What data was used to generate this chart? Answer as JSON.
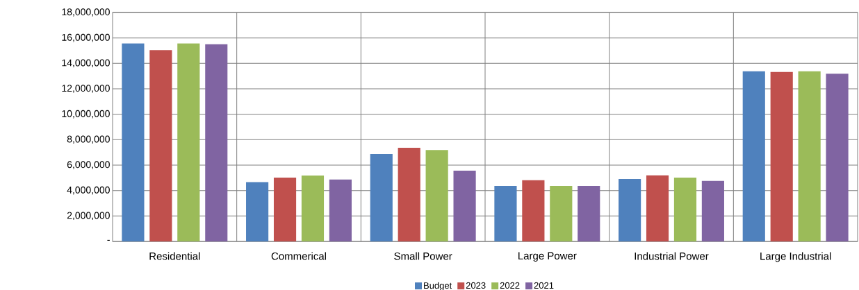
{
  "chart_data": {
    "type": "bar",
    "categories": [
      "Residential",
      "Commerical",
      "Small Power",
      "Large Power",
      "Industrial Power",
      "Large Industrial"
    ],
    "series": [
      {
        "name": "Budget",
        "color": "#4f81bd",
        "values": [
          15570000,
          4670000,
          6870000,
          4360000,
          4910000,
          13380000
        ]
      },
      {
        "name": "2023",
        "color": "#c0504d",
        "values": [
          15040000,
          5020000,
          7360000,
          4820000,
          5200000,
          13320000
        ]
      },
      {
        "name": "2022",
        "color": "#9bbb59",
        "values": [
          15570000,
          5180000,
          7180000,
          4360000,
          5020000,
          13380000
        ]
      },
      {
        "name": "2021",
        "color": "#8064a2",
        "values": [
          15510000,
          4870000,
          5560000,
          4360000,
          4760000,
          13180000
        ]
      }
    ],
    "ylim": [
      0,
      18000000
    ],
    "yticks": [
      {
        "value": 0,
        "label": "-"
      },
      {
        "value": 2000000,
        "label": "2,000,000"
      },
      {
        "value": 4000000,
        "label": "4,000,000"
      },
      {
        "value": 6000000,
        "label": "6,000,000"
      },
      {
        "value": 8000000,
        "label": "8,000,000"
      },
      {
        "value": 10000000,
        "label": "10,000,000"
      },
      {
        "value": 12000000,
        "label": "12,000,000"
      },
      {
        "value": 14000000,
        "label": "14,000,000"
      },
      {
        "value": 16000000,
        "label": "16,000,000"
      },
      {
        "value": 18000000,
        "label": "18,000,000"
      }
    ],
    "grid": true,
    "legend": "bottom"
  }
}
